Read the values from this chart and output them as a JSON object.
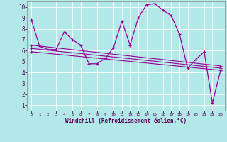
{
  "xlabel": "Windchill (Refroidissement éolien,°C)",
  "background_color": "#b2e8e8",
  "grid_color": "#ffffff",
  "line_color": "#990099",
  "xlim": [
    -0.5,
    23.5
  ],
  "ylim": [
    0.5,
    10.5
  ],
  "yticks": [
    1,
    2,
    3,
    4,
    5,
    6,
    7,
    8,
    9,
    10
  ],
  "xticks": [
    0,
    1,
    2,
    3,
    4,
    5,
    6,
    7,
    8,
    9,
    10,
    11,
    12,
    13,
    14,
    15,
    16,
    17,
    18,
    19,
    20,
    21,
    22,
    23
  ],
  "main_series": {
    "x": [
      0,
      1,
      2,
      3,
      4,
      5,
      6,
      7,
      8,
      9,
      10,
      11,
      12,
      13,
      14,
      15,
      16,
      17,
      18,
      19,
      20,
      21,
      22,
      23
    ],
    "y": [
      8.8,
      6.4,
      6.1,
      6.1,
      7.7,
      7.0,
      6.5,
      4.8,
      4.8,
      5.3,
      6.3,
      8.7,
      6.5,
      9.0,
      10.2,
      10.3,
      9.7,
      9.2,
      7.5,
      4.4,
      5.2,
      5.9,
      1.2,
      4.2
    ]
  },
  "trend_lines": [
    {
      "x": [
        0,
        23
      ],
      "y": [
        6.5,
        4.6
      ]
    },
    {
      "x": [
        0,
        23
      ],
      "y": [
        6.2,
        4.4
      ]
    },
    {
      "x": [
        0,
        23
      ],
      "y": [
        5.9,
        4.2
      ]
    }
  ]
}
